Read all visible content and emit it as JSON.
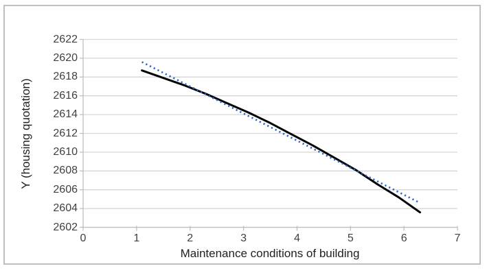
{
  "figure": {
    "frame_border_color": "#bfbfbf",
    "background_color": "#ffffff"
  },
  "chart_data": {
    "type": "line",
    "title": "",
    "xlabel": "Maintenance conditions of building",
    "ylabel": "Y (housing quotation)",
    "xlim": [
      0,
      7
    ],
    "ylim": [
      2602,
      2622
    ],
    "x_ticks": [
      0,
      1,
      2,
      3,
      4,
      5,
      6,
      7
    ],
    "y_ticks": [
      2602,
      2604,
      2606,
      2608,
      2610,
      2612,
      2614,
      2616,
      2618,
      2620,
      2622
    ],
    "grid": "horizontal",
    "legend": "none",
    "grid_color": "#d6d6d6",
    "axis_color": "#bfbfbf",
    "tick_label_color": "#404040",
    "axis_title_color": "#1f1f1f",
    "series": [
      {
        "name": "fitted curve (solid black)",
        "style": "solid",
        "color": "#000000",
        "width": 3,
        "x": [
          1.1,
          1.5,
          1.9,
          2.3,
          2.7,
          3.1,
          3.5,
          3.9,
          4.3,
          4.7,
          5.1,
          5.5,
          5.9,
          6.3
        ],
        "y": [
          2618.7,
          2617.9,
          2617.1,
          2616.2,
          2615.2,
          2614.2,
          2613.1,
          2611.9,
          2610.7,
          2609.4,
          2608.1,
          2606.6,
          2605.2,
          2603.6
        ]
      },
      {
        "name": "linear trendline (dotted blue)",
        "style": "dotted",
        "color": "#2e62c9",
        "width": 2.6,
        "x": [
          1.1,
          6.3
        ],
        "y": [
          2619.6,
          2604.6
        ]
      }
    ]
  }
}
